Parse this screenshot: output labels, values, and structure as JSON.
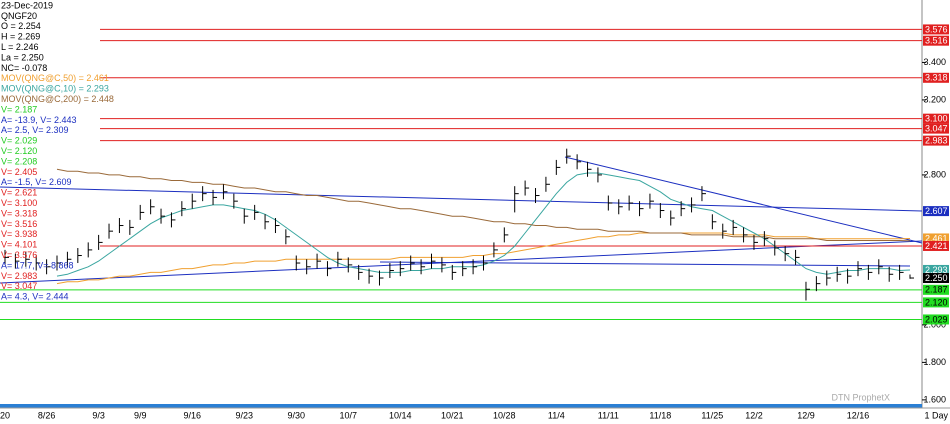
{
  "chart_data": {
    "type": "ohlc",
    "bar_color": "#000000",
    "ylim": [
      1.578,
      3.733
    ],
    "yticks": [
      {
        "value": 3.4,
        "label": "3.400"
      },
      {
        "value": 3.2,
        "label": "3.200"
      },
      {
        "value": 2.8,
        "label": "2.800"
      },
      {
        "value": 2.0,
        "label": "2.000"
      },
      {
        "value": 1.8,
        "label": "1.800"
      },
      {
        "value": 1.6,
        "label": "1.600"
      }
    ],
    "categories": [
      "20",
      null,
      null,
      null,
      "8/26",
      null,
      null,
      null,
      null,
      "9/3",
      null,
      null,
      null,
      "9/9",
      null,
      null,
      null,
      null,
      "9/16",
      null,
      null,
      null,
      null,
      "9/23",
      null,
      null,
      null,
      null,
      "9/30",
      null,
      null,
      null,
      null,
      "10/7",
      null,
      null,
      null,
      null,
      "10/14",
      null,
      null,
      null,
      null,
      "10/21",
      null,
      null,
      null,
      null,
      "10/28",
      null,
      null,
      null,
      null,
      "11/4",
      null,
      null,
      null,
      null,
      "11/11",
      null,
      null,
      null,
      null,
      "11/18",
      null,
      null,
      null,
      null,
      "11/25",
      null,
      null,
      null,
      "12/2",
      null,
      null,
      null,
      null,
      "12/9",
      null,
      null,
      null,
      null,
      "12/16",
      null,
      null,
      null,
      null,
      null
    ],
    "high": [
      2.4,
      2.38,
      2.39,
      2.37,
      2.35,
      2.37,
      2.39,
      2.41,
      2.44,
      2.48,
      2.54,
      2.57,
      2.56,
      2.64,
      2.67,
      2.62,
      2.6,
      2.66,
      2.7,
      2.74,
      2.72,
      2.75,
      2.7,
      2.62,
      2.64,
      2.59,
      2.57,
      2.51,
      2.37,
      2.35,
      2.38,
      2.34,
      2.39,
      2.36,
      2.32,
      2.3,
      2.29,
      2.33,
      2.34,
      2.37,
      2.35,
      2.38,
      2.36,
      2.32,
      2.34,
      2.35,
      2.37,
      2.44,
      2.52,
      2.74,
      2.77,
      2.73,
      2.79,
      2.88,
      2.94,
      2.91,
      2.87,
      2.84,
      2.69,
      2.67,
      2.69,
      2.66,
      2.7,
      2.65,
      2.61,
      2.66,
      2.68,
      2.74,
      2.59,
      2.54,
      2.56,
      2.52,
      2.48,
      2.5,
      2.45,
      2.42,
      2.4,
      2.23,
      2.26,
      2.29,
      2.31,
      2.3,
      2.34,
      2.32,
      2.35,
      2.31,
      2.32,
      2.269
    ],
    "low": [
      2.32,
      2.3,
      2.31,
      2.29,
      2.27,
      2.29,
      2.31,
      2.33,
      2.36,
      2.4,
      2.46,
      2.49,
      2.48,
      2.56,
      2.59,
      2.54,
      2.52,
      2.58,
      2.62,
      2.66,
      2.64,
      2.67,
      2.62,
      2.54,
      2.56,
      2.51,
      2.49,
      2.43,
      2.29,
      2.27,
      2.3,
      2.26,
      2.31,
      2.28,
      2.24,
      2.22,
      2.21,
      2.25,
      2.26,
      2.29,
      2.27,
      2.3,
      2.28,
      2.24,
      2.26,
      2.27,
      2.29,
      2.36,
      2.44,
      2.6,
      2.69,
      2.65,
      2.71,
      2.8,
      2.86,
      2.83,
      2.79,
      2.76,
      2.61,
      2.59,
      2.61,
      2.58,
      2.62,
      2.57,
      2.53,
      2.58,
      2.6,
      2.66,
      2.51,
      2.46,
      2.48,
      2.44,
      2.4,
      2.42,
      2.37,
      2.34,
      2.32,
      2.13,
      2.18,
      2.21,
      2.23,
      2.22,
      2.26,
      2.24,
      2.27,
      2.23,
      2.24,
      2.246
    ],
    "close": [
      2.36,
      2.34,
      2.35,
      2.33,
      2.31,
      2.33,
      2.35,
      2.37,
      2.4,
      2.44,
      2.5,
      2.53,
      2.52,
      2.6,
      2.63,
      2.58,
      2.56,
      2.62,
      2.66,
      2.7,
      2.68,
      2.71,
      2.66,
      2.58,
      2.6,
      2.55,
      2.53,
      2.47,
      2.33,
      2.31,
      2.34,
      2.3,
      2.35,
      2.32,
      2.28,
      2.26,
      2.25,
      2.29,
      2.3,
      2.33,
      2.31,
      2.34,
      2.32,
      2.28,
      2.3,
      2.31,
      2.33,
      2.4,
      2.48,
      2.7,
      2.73,
      2.69,
      2.75,
      2.84,
      2.9,
      2.87,
      2.83,
      2.8,
      2.65,
      2.63,
      2.65,
      2.62,
      2.66,
      2.61,
      2.57,
      2.62,
      2.64,
      2.7,
      2.55,
      2.5,
      2.52,
      2.48,
      2.44,
      2.46,
      2.41,
      2.38,
      2.36,
      2.19,
      2.22,
      2.25,
      2.27,
      2.26,
      2.3,
      2.28,
      2.31,
      2.27,
      2.28,
      2.25
    ],
    "series": [
      {
        "color": "#f0a030",
        "values": [
          null,
          null,
          null,
          null,
          null,
          2.22,
          2.23,
          2.23,
          2.24,
          2.24,
          2.25,
          2.26,
          2.26,
          2.27,
          2.28,
          2.28,
          2.29,
          2.3,
          2.3,
          2.31,
          2.32,
          2.32,
          2.33,
          2.33,
          2.34,
          2.34,
          2.34,
          2.35,
          2.35,
          2.35,
          2.35,
          2.35,
          2.35,
          2.35,
          2.35,
          2.35,
          2.35,
          2.35,
          2.36,
          2.36,
          2.36,
          2.36,
          2.36,
          2.36,
          2.36,
          2.37,
          2.37,
          2.38,
          2.38,
          2.39,
          2.4,
          2.41,
          2.42,
          2.43,
          2.44,
          2.45,
          2.46,
          2.47,
          2.47,
          2.48,
          2.48,
          2.49,
          2.49,
          2.49,
          2.49,
          2.49,
          2.49,
          2.49,
          2.49,
          2.49,
          2.48,
          2.48,
          2.48,
          2.48,
          2.47,
          2.47,
          2.47,
          2.47,
          2.46,
          2.46,
          2.46,
          2.46,
          2.46,
          2.46,
          2.46,
          2.46,
          2.46,
          2.461
        ]
      },
      {
        "color": "#3aa6a0",
        "values": [
          null,
          null,
          null,
          null,
          null,
          2.26,
          2.27,
          2.29,
          2.31,
          2.34,
          2.38,
          2.42,
          2.46,
          2.5,
          2.54,
          2.57,
          2.59,
          2.61,
          2.62,
          2.63,
          2.64,
          2.64,
          2.63,
          2.62,
          2.61,
          2.59,
          2.56,
          2.52,
          2.48,
          2.44,
          2.4,
          2.36,
          2.33,
          2.31,
          2.3,
          2.29,
          2.28,
          2.28,
          2.28,
          2.29,
          2.29,
          2.3,
          2.3,
          2.31,
          2.31,
          2.31,
          2.32,
          2.34,
          2.37,
          2.42,
          2.49,
          2.56,
          2.63,
          2.7,
          2.76,
          2.8,
          2.81,
          2.81,
          2.8,
          2.79,
          2.78,
          2.77,
          2.74,
          2.71,
          2.67,
          2.65,
          2.63,
          2.62,
          2.61,
          2.58,
          2.55,
          2.52,
          2.49,
          2.46,
          2.42,
          2.38,
          2.34,
          2.3,
          2.28,
          2.27,
          2.28,
          2.29,
          2.29,
          2.3,
          2.3,
          2.3,
          2.29,
          2.293
        ]
      },
      {
        "color": "#9a6a3a",
        "values": [
          null,
          null,
          null,
          null,
          null,
          2.83,
          2.82,
          2.82,
          2.81,
          2.81,
          2.8,
          2.8,
          2.79,
          2.79,
          2.78,
          2.78,
          2.77,
          2.77,
          2.76,
          2.76,
          2.75,
          2.75,
          2.74,
          2.73,
          2.73,
          2.72,
          2.71,
          2.71,
          2.7,
          2.69,
          2.69,
          2.68,
          2.67,
          2.66,
          2.66,
          2.65,
          2.64,
          2.63,
          2.62,
          2.62,
          2.61,
          2.6,
          2.59,
          2.58,
          2.58,
          2.57,
          2.56,
          2.55,
          2.55,
          2.54,
          2.54,
          2.53,
          2.53,
          2.52,
          2.52,
          2.51,
          2.51,
          2.51,
          2.5,
          2.5,
          2.5,
          2.5,
          2.49,
          2.49,
          2.49,
          2.49,
          2.48,
          2.48,
          2.48,
          2.48,
          2.47,
          2.47,
          2.47,
          2.47,
          2.46,
          2.46,
          2.46,
          2.46,
          2.46,
          2.45,
          2.45,
          2.45,
          2.45,
          2.45,
          2.45,
          2.45,
          2.45,
          2.448
        ]
      }
    ],
    "levels": [
      {
        "value": 3.576,
        "label": "3.576",
        "color": "#e02020",
        "line": true
      },
      {
        "value": 3.516,
        "label": "3.516",
        "color": "#e02020",
        "line": true
      },
      {
        "value": 3.318,
        "label": "3.318",
        "color": "#e02020",
        "line": true
      },
      {
        "value": 3.1,
        "label": "3.100",
        "color": "#e02020",
        "line": true
      },
      {
        "value": 3.047,
        "label": "3.047",
        "color": "#e02020",
        "line": true
      },
      {
        "value": 2.983,
        "label": "2.983",
        "color": "#e02020",
        "line": true
      },
      {
        "value": 2.607,
        "label": "2.607",
        "color": "#1c2fc0",
        "line": false
      },
      {
        "value": 2.461,
        "label": "2.461",
        "color": "#f0a030",
        "line": false
      },
      {
        "value": 2.421,
        "label": "2.421",
        "color": "#e02020",
        "line": true
      },
      {
        "value": 2.293,
        "label": "2.293",
        "color": "#3aa6a0",
        "line": false
      },
      {
        "value": 2.25,
        "label": "2.250",
        "color": "#000000",
        "line": false
      },
      {
        "value": 2.187,
        "label": "2.187",
        "color": "#22dd22",
        "line": true
      },
      {
        "value": 2.12,
        "label": "2.120",
        "color": "#22dd22",
        "line": true
      },
      {
        "value": 2.029,
        "label": "2.029",
        "color": "#22dd22",
        "line": true
      }
    ],
    "legend": [
      {
        "text": "23-Dec-2019",
        "color": "#000000"
      },
      {
        "text": "QNGF20",
        "color": "#000000"
      },
      {
        "text": "O = 2.254",
        "color": "#000000"
      },
      {
        "text": "H = 2.269",
        "color": "#000000"
      },
      {
        "text": "L = 2.246",
        "color": "#000000"
      },
      {
        "text": "La = 2.250",
        "color": "#000000"
      },
      {
        "text": "NC= -0.078",
        "color": "#000000"
      },
      {
        "text": "MOV(QNG@C,50) = 2.461",
        "color": "#f0a030"
      },
      {
        "text": "MOV(QNG@C,10) = 2.293",
        "color": "#3aa6a0"
      },
      {
        "text": "MOV(QNG@C,200) = 2.448",
        "color": "#9a6a3a"
      },
      {
        "text": "V= 2.187",
        "color": "#22cc22"
      },
      {
        "text": "A= -13.9, V= 2.443",
        "color": "#1c2fc0"
      },
      {
        "text": "A= 2.5, V= 2.309",
        "color": "#1c2fc0"
      },
      {
        "text": "V= 2.029",
        "color": "#22cc22"
      },
      {
        "text": "V= 2.120",
        "color": "#22cc22"
      },
      {
        "text": "V= 2.208",
        "color": "#22cc22"
      },
      {
        "text": "V= 2.405",
        "color": "#e02020"
      },
      {
        "text": "A= -1.5, V= 2.609",
        "color": "#1c2fc0"
      },
      {
        "text": "V= 2.621",
        "color": "#e02020"
      },
      {
        "text": "V= 3.100",
        "color": "#e02020"
      },
      {
        "text": "V= 3.318",
        "color": "#e02020"
      },
      {
        "text": "V= 3.516",
        "color": "#e02020"
      },
      {
        "text": "V= 3.938",
        "color": "#e02020"
      },
      {
        "text": "V= 4.101",
        "color": "#e02020"
      },
      {
        "text": "V= 3.576",
        "color": "#e02020"
      },
      {
        "text": "A= 17.7, V= 8.868",
        "color": "#1c2fc0"
      },
      {
        "text": "V= 2.983",
        "color": "#e02020"
      },
      {
        "text": "V= 3.047",
        "color": "#e02020"
      },
      {
        "text": "A= 4.3, V= 2.444",
        "color": "#1c2fc0"
      }
    ],
    "watermark": "DTN ProphetX",
    "period": "1 Day"
  }
}
